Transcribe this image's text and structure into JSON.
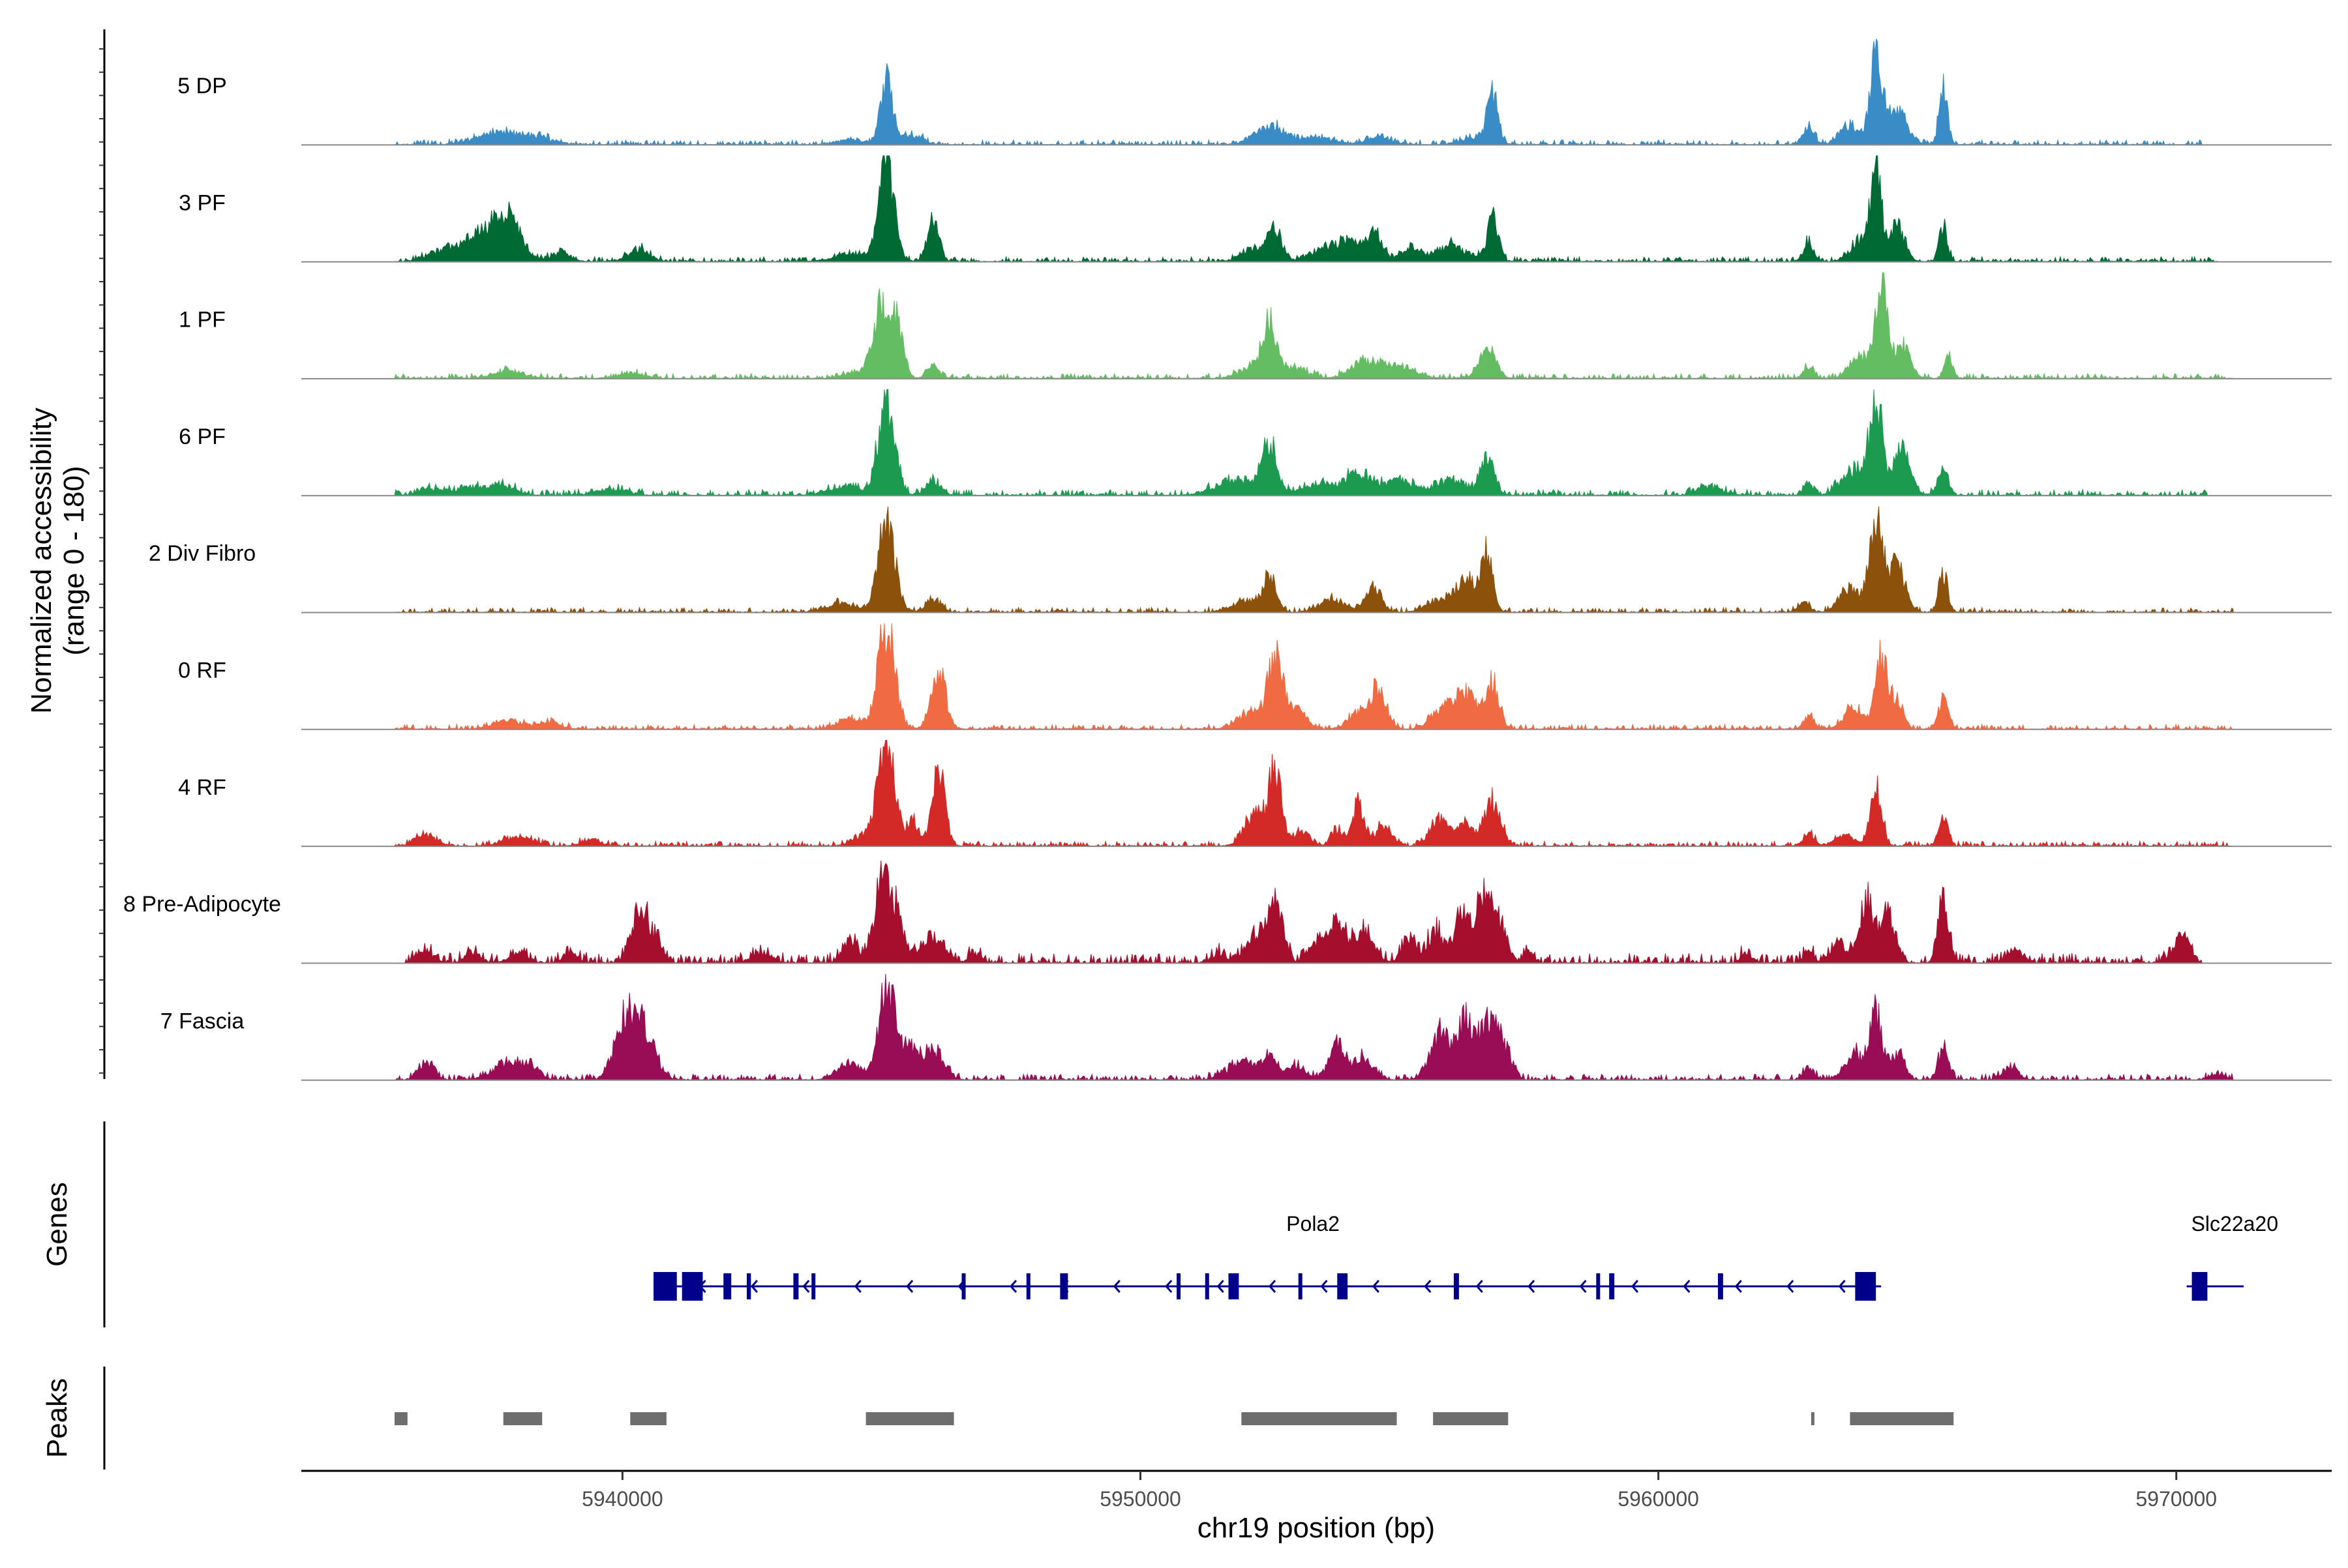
{
  "chart_data": {
    "type": "area",
    "chromosome": "chr19",
    "xlabel": "chr19 position (bp)",
    "ylabel_line1": "Normalized accessibility",
    "ylabel_line2": "(range 0 - 180)",
    "ylim": [
      0,
      180
    ],
    "xlim": [
      5933800,
      5973000
    ],
    "xticks": [
      5940000,
      5950000,
      5960000,
      5970000
    ],
    "xtick_labels": [
      "5940000",
      "5950000",
      "5960000",
      "5970000"
    ],
    "tracks": [
      {
        "name": "5 DP",
        "color": "#3a8cc6",
        "region": [
          5935600,
          5970500
        ],
        "noise": 0.05,
        "seed": 11,
        "peaks": [
          [
            5937600,
            400,
            0.12
          ],
          [
            5938400,
            300,
            0.06
          ],
          [
            5944400,
            250,
            0.05
          ],
          [
            5945100,
            120,
            0.62
          ],
          [
            5945600,
            200,
            0.08
          ],
          [
            5952500,
            300,
            0.18
          ],
          [
            5953400,
            300,
            0.07
          ],
          [
            5954600,
            250,
            0.07
          ],
          [
            5956500,
            300,
            0.07
          ],
          [
            5956800,
            100,
            0.48
          ],
          [
            5962900,
            100,
            0.18
          ],
          [
            5963700,
            200,
            0.18
          ],
          [
            5964200,
            110,
            0.88
          ],
          [
            5964600,
            200,
            0.35
          ],
          [
            5965500,
            80,
            0.55
          ]
        ]
      },
      {
        "name": "3 PF",
        "color": "#006a35",
        "region": [
          5935600,
          5970800
        ],
        "noise": 0.05,
        "seed": 23,
        "peaks": [
          [
            5936500,
            300,
            0.08
          ],
          [
            5937300,
            400,
            0.25
          ],
          [
            5937800,
            250,
            0.32
          ],
          [
            5938800,
            200,
            0.08
          ],
          [
            5940300,
            200,
            0.12
          ],
          [
            5944400,
            300,
            0.08
          ],
          [
            5945100,
            150,
            1.0
          ],
          [
            5946000,
            110,
            0.42
          ],
          [
            5952200,
            250,
            0.12
          ],
          [
            5952600,
            130,
            0.3
          ],
          [
            5953500,
            250,
            0.12
          ],
          [
            5954000,
            200,
            0.2
          ],
          [
            5954500,
            150,
            0.28
          ],
          [
            5955200,
            200,
            0.12
          ],
          [
            5956000,
            300,
            0.15
          ],
          [
            5956800,
            110,
            0.4
          ],
          [
            5962900,
            100,
            0.18
          ],
          [
            5963900,
            200,
            0.2
          ],
          [
            5964200,
            100,
            0.88
          ],
          [
            5964600,
            150,
            0.35
          ],
          [
            5965500,
            80,
            0.35
          ]
        ]
      },
      {
        "name": "1 PF",
        "color": "#64bd63",
        "region": [
          5935600,
          5971100
        ],
        "noise": 0.05,
        "seed": 37,
        "peaks": [
          [
            5937800,
            300,
            0.07
          ],
          [
            5940200,
            250,
            0.05
          ],
          [
            5944600,
            300,
            0.07
          ],
          [
            5945000,
            150,
            0.7
          ],
          [
            5945300,
            120,
            0.55
          ],
          [
            5946000,
            120,
            0.12
          ],
          [
            5952300,
            300,
            0.15
          ],
          [
            5952500,
            120,
            0.45
          ],
          [
            5953000,
            250,
            0.1
          ],
          [
            5954400,
            300,
            0.18
          ],
          [
            5955100,
            250,
            0.1
          ],
          [
            5956700,
            150,
            0.35
          ],
          [
            5962900,
            100,
            0.12
          ],
          [
            5963900,
            200,
            0.2
          ],
          [
            5964300,
            110,
            0.95
          ],
          [
            5964700,
            150,
            0.35
          ],
          [
            5965600,
            80,
            0.22
          ]
        ]
      },
      {
        "name": "6 PF",
        "color": "#1c9a50",
        "region": [
          5935600,
          5970600
        ],
        "noise": 0.06,
        "seed": 41,
        "peaks": [
          [
            5936300,
            250,
            0.06
          ],
          [
            5937100,
            300,
            0.08
          ],
          [
            5937700,
            250,
            0.08
          ],
          [
            5939800,
            300,
            0.06
          ],
          [
            5944300,
            350,
            0.08
          ],
          [
            5945100,
            160,
            0.95
          ],
          [
            5946000,
            140,
            0.15
          ],
          [
            5951900,
            400,
            0.15
          ],
          [
            5952500,
            140,
            0.45
          ],
          [
            5953400,
            300,
            0.1
          ],
          [
            5954200,
            300,
            0.2
          ],
          [
            5955000,
            250,
            0.15
          ],
          [
            5956000,
            300,
            0.15
          ],
          [
            5956700,
            130,
            0.38
          ],
          [
            5961000,
            250,
            0.08
          ],
          [
            5962900,
            100,
            0.12
          ],
          [
            5963800,
            250,
            0.25
          ],
          [
            5964200,
            110,
            0.95
          ],
          [
            5964700,
            160,
            0.5
          ],
          [
            5965500,
            100,
            0.25
          ]
        ]
      },
      {
        "name": "2 Div Fibro",
        "color": "#8c510a",
        "region": [
          5935600,
          5971100
        ],
        "noise": 0.05,
        "seed": 53,
        "peaks": [
          [
            5944200,
            300,
            0.08
          ],
          [
            5945100,
            160,
            0.92
          ],
          [
            5946000,
            150,
            0.12
          ],
          [
            5952100,
            300,
            0.12
          ],
          [
            5952500,
            120,
            0.3
          ],
          [
            5953700,
            250,
            0.12
          ],
          [
            5954500,
            150,
            0.25
          ],
          [
            5955800,
            250,
            0.12
          ],
          [
            5956300,
            200,
            0.3
          ],
          [
            5956700,
            110,
            0.58
          ],
          [
            5962800,
            100,
            0.12
          ],
          [
            5963700,
            200,
            0.25
          ],
          [
            5964200,
            120,
            1.0
          ],
          [
            5964600,
            160,
            0.45
          ],
          [
            5965500,
            90,
            0.38
          ]
        ]
      },
      {
        "name": "0 RF",
        "color": "#f06a42",
        "region": [
          5935600,
          5971100
        ],
        "noise": 0.05,
        "seed": 67,
        "peaks": [
          [
            5937800,
            300,
            0.08
          ],
          [
            5938600,
            200,
            0.08
          ],
          [
            5944400,
            250,
            0.1
          ],
          [
            5945100,
            160,
            1.0
          ],
          [
            5946100,
            140,
            0.55
          ],
          [
            5952100,
            250,
            0.15
          ],
          [
            5952600,
            150,
            0.65
          ],
          [
            5953000,
            200,
            0.2
          ],
          [
            5954200,
            200,
            0.15
          ],
          [
            5954600,
            150,
            0.38
          ],
          [
            5955900,
            250,
            0.2
          ],
          [
            5956300,
            200,
            0.3
          ],
          [
            5956800,
            130,
            0.45
          ],
          [
            5962900,
            100,
            0.12
          ],
          [
            5963800,
            200,
            0.2
          ],
          [
            5964300,
            110,
            0.75
          ],
          [
            5964600,
            120,
            0.3
          ],
          [
            5965500,
            90,
            0.3
          ]
        ]
      },
      {
        "name": "4 RF",
        "color": "#d42a27",
        "region": [
          5935600,
          5971100
        ],
        "noise": 0.05,
        "seed": 79,
        "peaks": [
          [
            5936200,
            200,
            0.1
          ],
          [
            5938000,
            300,
            0.08
          ],
          [
            5939400,
            200,
            0.06
          ],
          [
            5944700,
            250,
            0.1
          ],
          [
            5945100,
            160,
            1.0
          ],
          [
            5945600,
            100,
            0.25
          ],
          [
            5946100,
            120,
            0.8
          ],
          [
            5952200,
            200,
            0.3
          ],
          [
            5952600,
            130,
            0.7
          ],
          [
            5953100,
            150,
            0.15
          ],
          [
            5953800,
            120,
            0.15
          ],
          [
            5954200,
            120,
            0.42
          ],
          [
            5954700,
            150,
            0.2
          ],
          [
            5955800,
            200,
            0.25
          ],
          [
            5956300,
            150,
            0.2
          ],
          [
            5956800,
            150,
            0.45
          ],
          [
            5962900,
            100,
            0.12
          ],
          [
            5963600,
            200,
            0.1
          ],
          [
            5964200,
            110,
            0.6
          ],
          [
            5965500,
            90,
            0.28
          ]
        ]
      },
      {
        "name": "8 Pre-Adipocyte",
        "color": "#a50f2d",
        "region": [
          5935800,
          5970500
        ],
        "noise": 0.1,
        "seed": 83,
        "peaks": [
          [
            5936200,
            150,
            0.12
          ],
          [
            5937100,
            150,
            0.1
          ],
          [
            5938000,
            150,
            0.1
          ],
          [
            5939000,
            150,
            0.1
          ],
          [
            5940300,
            150,
            0.45
          ],
          [
            5940600,
            150,
            0.25
          ],
          [
            5942700,
            200,
            0.1
          ],
          [
            5944400,
            150,
            0.2
          ],
          [
            5945000,
            150,
            0.75
          ],
          [
            5945300,
            150,
            0.45
          ],
          [
            5946000,
            200,
            0.25
          ],
          [
            5946800,
            100,
            0.1
          ],
          [
            5951500,
            150,
            0.08
          ],
          [
            5952200,
            200,
            0.25
          ],
          [
            5952600,
            150,
            0.55
          ],
          [
            5953400,
            150,
            0.2
          ],
          [
            5953800,
            150,
            0.35
          ],
          [
            5954300,
            200,
            0.3
          ],
          [
            5955200,
            150,
            0.2
          ],
          [
            5955700,
            150,
            0.3
          ],
          [
            5956200,
            150,
            0.45
          ],
          [
            5956600,
            150,
            0.55
          ],
          [
            5956900,
            150,
            0.4
          ],
          [
            5957500,
            100,
            0.1
          ],
          [
            5961700,
            100,
            0.1
          ],
          [
            5962900,
            100,
            0.1
          ],
          [
            5963500,
            150,
            0.2
          ],
          [
            5964000,
            130,
            0.55
          ],
          [
            5964400,
            150,
            0.5
          ],
          [
            5965500,
            100,
            0.6
          ],
          [
            5966900,
            150,
            0.12
          ],
          [
            5970100,
            150,
            0.28
          ]
        ]
      },
      {
        "name": "7 Fascia",
        "color": "#980d55",
        "region": [
          5935600,
          5971100
        ],
        "noise": 0.06,
        "seed": 97,
        "peaks": [
          [
            5936200,
            150,
            0.18
          ],
          [
            5937800,
            300,
            0.15
          ],
          [
            5938200,
            200,
            0.08
          ],
          [
            5940100,
            220,
            0.65
          ],
          [
            5940500,
            180,
            0.35
          ],
          [
            5944400,
            250,
            0.15
          ],
          [
            5945100,
            150,
            0.9
          ],
          [
            5945500,
            200,
            0.3
          ],
          [
            5946000,
            200,
            0.28
          ],
          [
            5952000,
            300,
            0.18
          ],
          [
            5952500,
            150,
            0.2
          ],
          [
            5953000,
            200,
            0.12
          ],
          [
            5953800,
            150,
            0.35
          ],
          [
            5954300,
            200,
            0.2
          ],
          [
            5955800,
            200,
            0.45
          ],
          [
            5956300,
            150,
            0.58
          ],
          [
            5956700,
            150,
            0.5
          ],
          [
            5957000,
            150,
            0.35
          ],
          [
            5962900,
            100,
            0.12
          ],
          [
            5963800,
            200,
            0.25
          ],
          [
            5964200,
            110,
            0.62
          ],
          [
            5964600,
            150,
            0.25
          ],
          [
            5965500,
            100,
            0.3
          ],
          [
            5966800,
            150,
            0.12
          ],
          [
            5970800,
            150,
            0.05
          ]
        ]
      }
    ],
    "genes": [
      {
        "name": "Pola2",
        "start": 5940600,
        "end": 5964300,
        "strand": "-",
        "exons": [
          [
            5940600,
            5941050
          ],
          [
            5941150,
            5941550
          ],
          [
            5941950,
            5942100
          ],
          [
            5942400,
            5942480
          ],
          [
            5943300,
            5943400
          ],
          [
            5943650,
            5943720
          ],
          [
            5946550,
            5946600
          ],
          [
            5947800,
            5947850
          ],
          [
            5948450,
            5948600
          ],
          [
            5950700,
            5950760
          ],
          [
            5951250,
            5951300
          ],
          [
            5951700,
            5951900
          ],
          [
            5953050,
            5953120
          ],
          [
            5953800,
            5954000
          ],
          [
            5956050,
            5956150
          ],
          [
            5958800,
            5958870
          ],
          [
            5959050,
            5959150
          ],
          [
            5961150,
            5961250
          ],
          [
            5963800,
            5964200
          ]
        ]
      },
      {
        "name": "Slc22a20",
        "start": 5970200,
        "end": 5971300,
        "strand": "+",
        "exons": [
          [
            5970300,
            5970600
          ]
        ]
      }
    ],
    "genes_title": "Genes",
    "peaks_title": "Peaks",
    "peak_regions": [
      [
        5935600,
        5935850
      ],
      [
        5937700,
        5938450
      ],
      [
        5940150,
        5940850
      ],
      [
        5944700,
        5946400
      ],
      [
        5951950,
        5954950
      ],
      [
        5955650,
        5957100
      ],
      [
        5962950,
        5963000
      ],
      [
        5963700,
        5965700
      ]
    ],
    "peak_color": "#6e6e6e",
    "gene_color": "#00008b"
  }
}
